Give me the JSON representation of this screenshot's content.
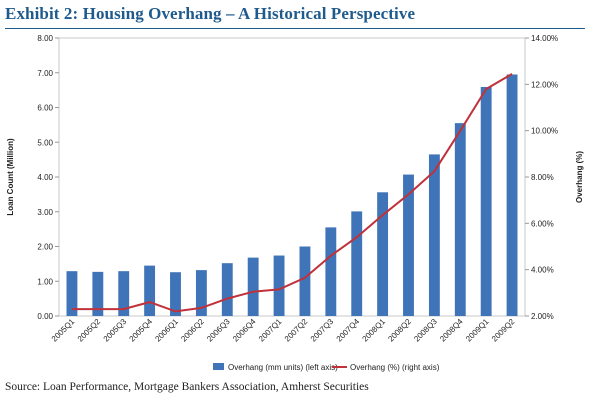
{
  "title": "Exhibit 2:  Housing Overhang – A Historical Perspective",
  "source": "Source:  Loan Performance, Mortgage Bankers Association, Amherst Securities",
  "chart_data": {
    "type": "bar",
    "categories": [
      "2005Q1",
      "2005Q2",
      "2005Q3",
      "2005Q4",
      "2006Q1",
      "2006Q2",
      "2006Q3",
      "2006Q4",
      "2007Q1",
      "2007Q2",
      "2007Q3",
      "2007Q4",
      "2008Q1",
      "2008Q2",
      "2008Q3",
      "2008Q4",
      "2009Q1",
      "2009Q2"
    ],
    "series": [
      {
        "name": "Overhang (mm units) (left axis)",
        "type": "bar",
        "axis": "left",
        "color": "#3f74b8",
        "values": [
          1.29,
          1.27,
          1.29,
          1.45,
          1.26,
          1.32,
          1.52,
          1.68,
          1.74,
          2.0,
          2.55,
          3.01,
          3.56,
          4.07,
          4.65,
          5.55,
          6.59,
          6.95
        ]
      },
      {
        "name": "Overhang (%) (right axis)",
        "type": "line",
        "axis": "right",
        "color": "#c0313a",
        "values": [
          2.3,
          2.3,
          2.3,
          2.6,
          2.2,
          2.35,
          2.75,
          3.05,
          3.15,
          3.65,
          4.6,
          5.4,
          6.35,
          7.25,
          8.25,
          10.0,
          11.8,
          12.45
        ]
      }
    ],
    "ylabel_left": "Loan Count (Million)",
    "ylabel_right": "Overhang (%)",
    "ylim_left": [
      0,
      8
    ],
    "ylim_right": [
      2,
      14
    ],
    "left_ticks": [
      "0.00",
      "1.00",
      "2.00",
      "3.00",
      "4.00",
      "5.00",
      "6.00",
      "7.00",
      "8.00"
    ],
    "right_ticks": [
      "2.00%",
      "4.00%",
      "6.00%",
      "8.00%",
      "10.00%",
      "12.00%",
      "14.00%"
    ],
    "grid": false,
    "legend_position": "bottom"
  }
}
